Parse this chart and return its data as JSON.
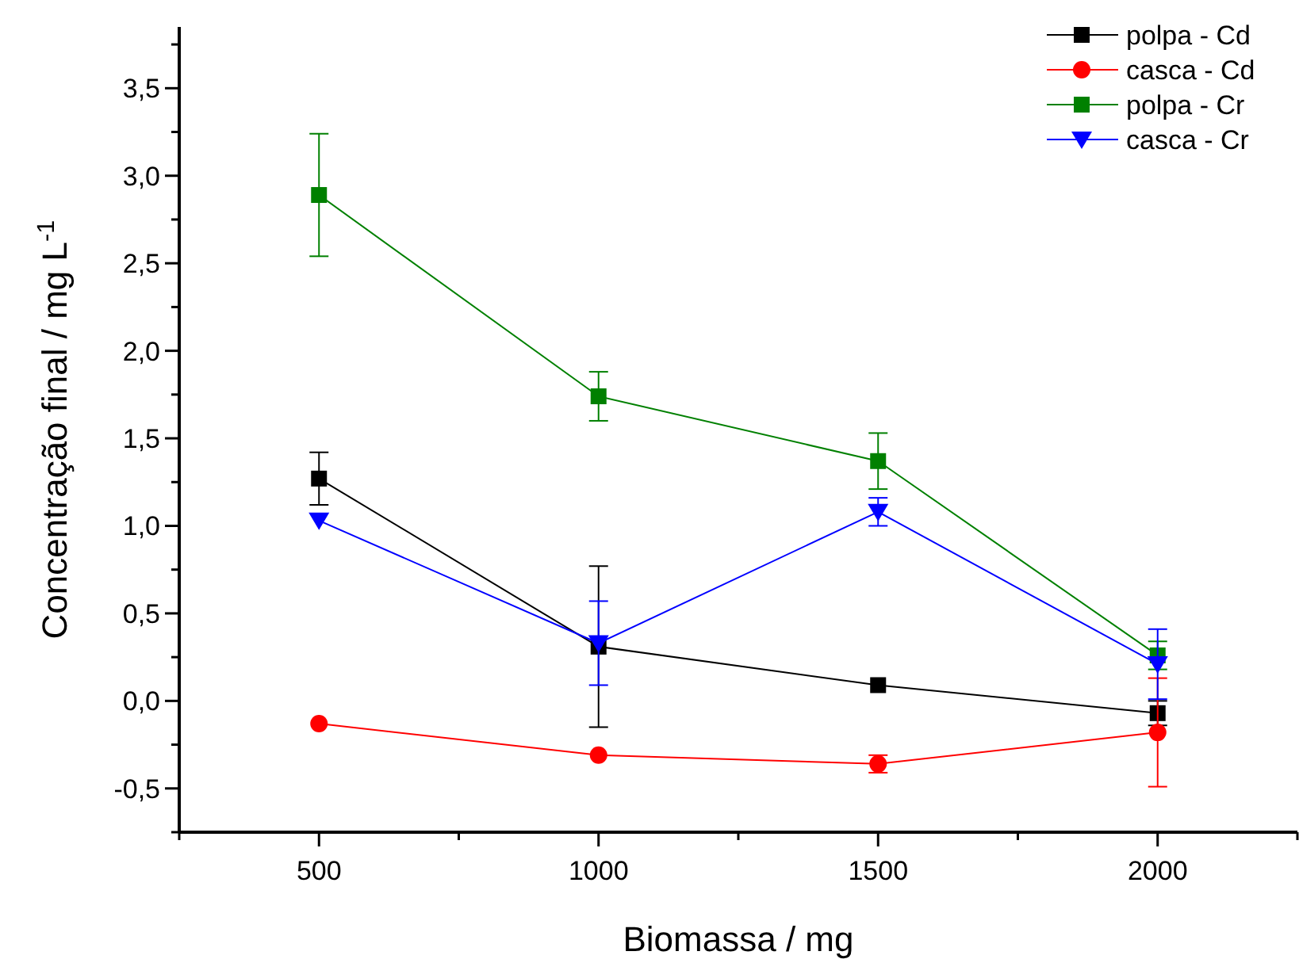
{
  "chart_data": {
    "type": "line",
    "xlabel": "Biomassa / mg",
    "ylabel": "Concentração final / mg L$^{-1}$",
    "x": [
      500,
      1000,
      1500,
      2000
    ],
    "xlim": [
      250,
      2250
    ],
    "xticks": [
      {
        "value": 250,
        "label": null
      },
      500,
      {
        "value": 750,
        "label": null
      },
      1000,
      {
        "value": 1250,
        "label": null
      },
      1500,
      {
        "value": 1750,
        "label": null
      },
      2000,
      {
        "value": 2250,
        "label": null
      }
    ],
    "ylim": [
      -0.75,
      3.85
    ],
    "yticks": [
      {
        "value": -0.75,
        "label": null
      },
      {
        "value": -0.5,
        "label": "-0,5"
      },
      {
        "value": -0.25,
        "label": null
      },
      {
        "value": 0,
        "label": "0,0"
      },
      {
        "value": 0.25,
        "label": null
      },
      {
        "value": 0.5,
        "label": "0,5"
      },
      {
        "value": 0.75,
        "label": null
      },
      {
        "value": 1,
        "label": "1,0"
      },
      {
        "value": 1.25,
        "label": null
      },
      {
        "value": 1.5,
        "label": "1,5"
      },
      {
        "value": 1.75,
        "label": null
      },
      {
        "value": 2,
        "label": "2,0"
      },
      {
        "value": 2.25,
        "label": null
      },
      {
        "value": 2.5,
        "label": "2,5"
      },
      {
        "value": 2.75,
        "label": null
      },
      {
        "value": 3,
        "label": "3,0"
      },
      {
        "value": 3.25,
        "label": null
      },
      {
        "value": 3.5,
        "label": "3,5"
      },
      {
        "value": 3.75,
        "label": null
      }
    ],
    "legend": "top right",
    "grid": false,
    "series": [
      {
        "name": "polpa - Cd",
        "color": "#000000",
        "marker": "square",
        "values": [
          1.27,
          0.31,
          0.09,
          -0.07
        ],
        "errors": [
          0.15,
          0.46,
          null,
          0.07
        ]
      },
      {
        "name": "casca - Cd",
        "color": "#ff0000",
        "marker": "circle",
        "values": [
          -0.13,
          -0.31,
          -0.36,
          -0.18
        ],
        "errors": [
          null,
          null,
          0.05,
          0.31
        ]
      },
      {
        "name": "polpa - Cr",
        "color": "#008000",
        "marker": "square",
        "values": [
          2.89,
          1.74,
          1.37,
          0.26
        ],
        "errors": [
          0.35,
          0.14,
          0.16,
          0.08
        ]
      },
      {
        "name": "casca - Cr",
        "color": "#0000ff",
        "marker": "triangle",
        "values": [
          1.03,
          0.33,
          1.08,
          0.21
        ],
        "errors": [
          null,
          0.24,
          0.08,
          0.2
        ]
      }
    ]
  }
}
